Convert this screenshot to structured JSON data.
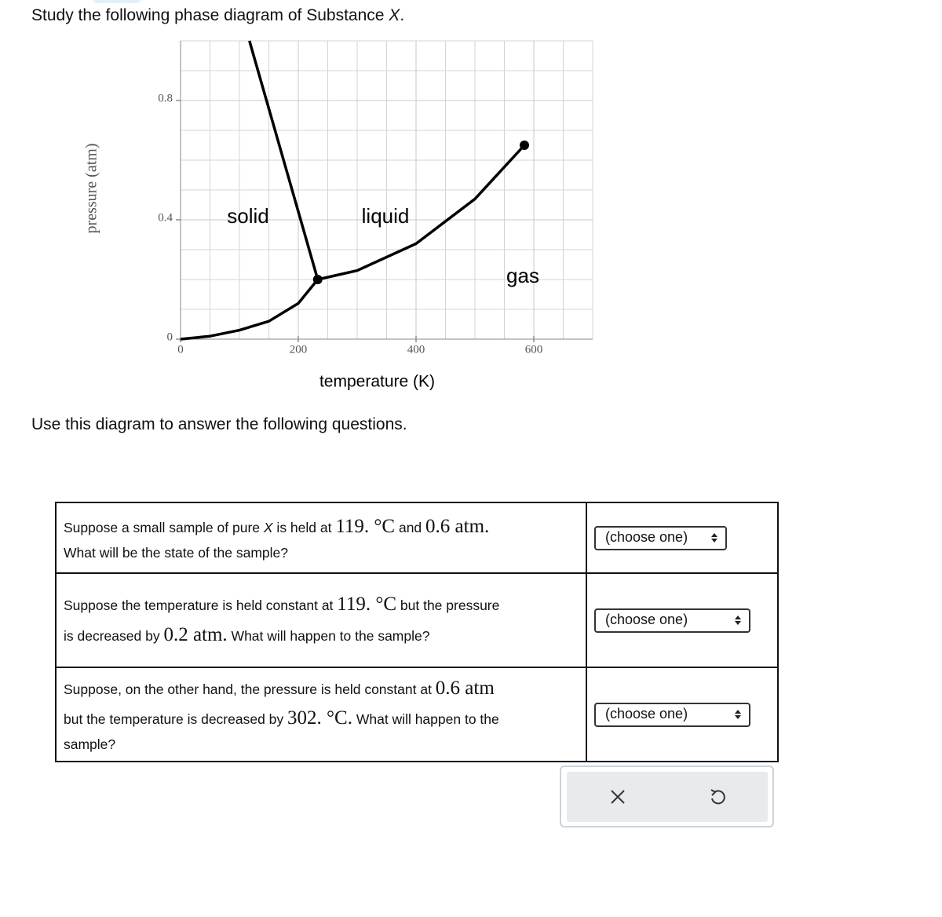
{
  "header": {
    "text": [
      "Study the following phase diagram of Substance ",
      "X",
      "."
    ]
  },
  "chart_data": {
    "type": "line",
    "x_label": "temperature (K)",
    "y_label": "pressure (atm)",
    "xlim": [
      0,
      700
    ],
    "ylim": [
      0,
      1
    ],
    "xticks": [
      0,
      200,
      400,
      600
    ],
    "yticks": [
      0,
      0.4,
      0.8
    ],
    "grid": true,
    "series": [
      {
        "color": "#000000",
        "x": [
          0,
          50,
          100,
          150,
          200,
          233
        ],
        "values": [
          0,
          0.01,
          0.03,
          0.06,
          0.12,
          0.2
        ]
      },
      {
        "color": "#000000",
        "x": [
          233,
          300,
          400,
          500,
          584
        ],
        "values": [
          0.2,
          0.23,
          0.32,
          0.47,
          0.65
        ]
      },
      {
        "color": "#000000",
        "x": [
          233,
          117
        ],
        "values": [
          0.2,
          1
        ]
      }
    ],
    "annotations": [
      "solid",
      "liquid",
      "gas"
    ]
  },
  "instruction": "Use this diagram to answer the following questions.",
  "questions": [
    {
      "text": [
        "Suppose a small sample of pure ",
        "X",
        " is held at ",
        "119. °C",
        " and ",
        "0.6 atm.",
        "What will be the state of the sample?"
      ],
      "answer": "(choose one)"
    },
    {
      "text": [
        "Suppose the temperature is held constant at ",
        "119. °C",
        " but the pressure",
        "is decreased by ",
        "0.2 atm.",
        " What will happen to the sample?"
      ],
      "answer": "(choose one)"
    },
    {
      "text": [
        "Suppose, on the other hand, the pressure is held constant at ",
        "0.6 atm",
        "but the temperature is decreased by ",
        "302. °C.",
        " What will happen to the",
        "sample?"
      ],
      "answer": "(choose one)"
    }
  ]
}
